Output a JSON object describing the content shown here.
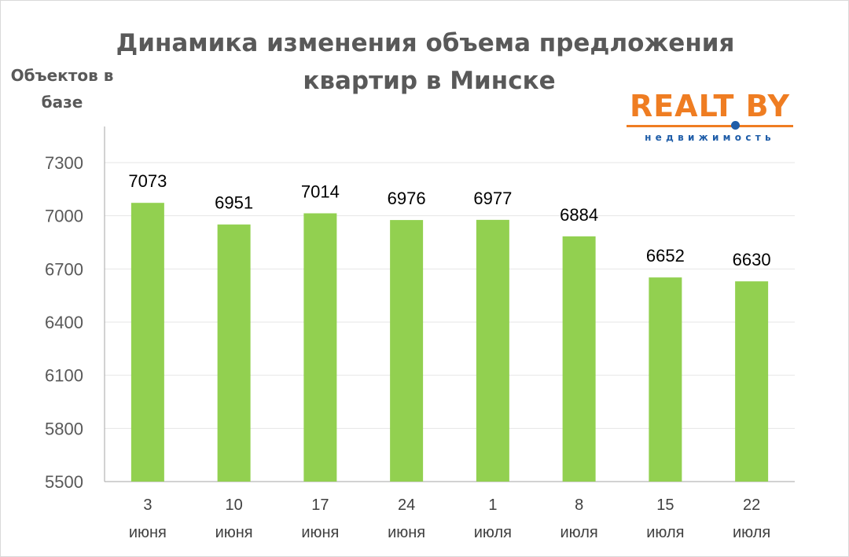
{
  "title_line1": "Динамика изменения объема предложения",
  "title_line2": "квартир в Минске",
  "logo": {
    "brand": "REALT BY",
    "subtitle": "недвижимость",
    "color_brand": "#ef7d22",
    "color_accent": "#1f5da8"
  },
  "chart_data": {
    "type": "bar",
    "title": "Динамика изменения объема предложения квартир в Минске",
    "ylabel": "Объектов в базе",
    "xlabel": "",
    "categories": [
      [
        "3",
        "июня"
      ],
      [
        "10",
        "июня"
      ],
      [
        "17",
        "июня"
      ],
      [
        "24",
        "июня"
      ],
      [
        "1",
        "июля"
      ],
      [
        "8",
        "июля"
      ],
      [
        "15",
        "июля"
      ],
      [
        "22",
        "июля"
      ]
    ],
    "values": [
      7073,
      6951,
      7014,
      6976,
      6977,
      6884,
      6652,
      6630
    ],
    "ylim": [
      5500,
      7300
    ],
    "yticks": [
      5500,
      5800,
      6100,
      6400,
      6700,
      7000,
      7300
    ],
    "grid": true,
    "bar_color": "#92d050",
    "grid_color": "#e6e6e6",
    "axis_color": "#a6a6a6"
  }
}
